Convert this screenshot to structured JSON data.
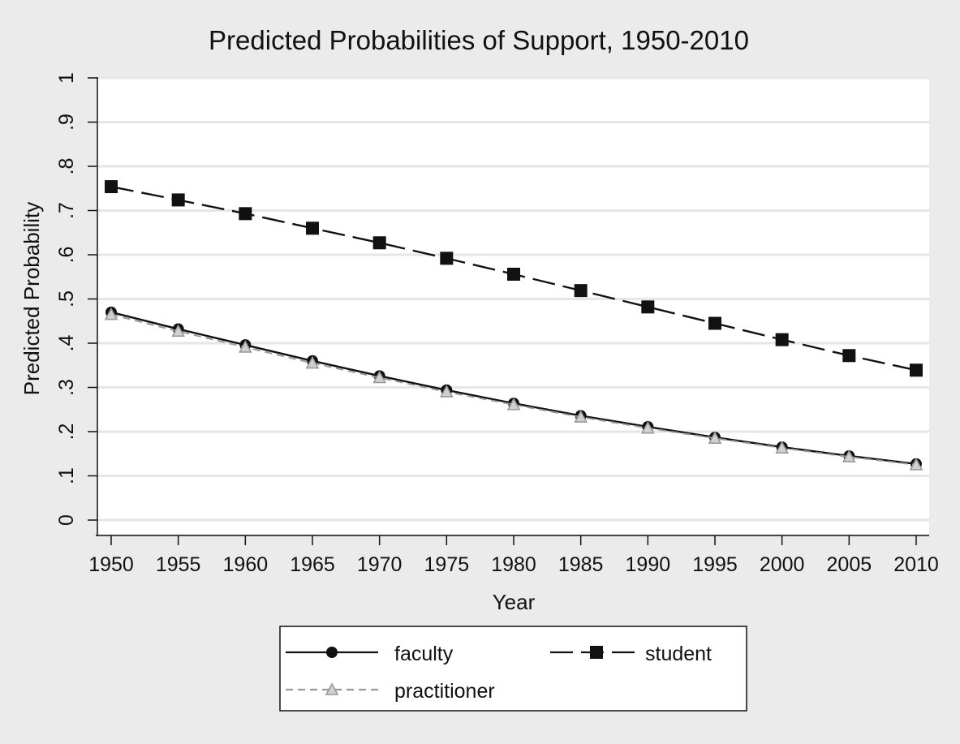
{
  "chart_data": {
    "type": "line",
    "title": "Predicted Probabilities of Support, 1950-2010",
    "xlabel": "Year",
    "ylabel": "Predicted Probability",
    "x": [
      1950,
      1955,
      1960,
      1965,
      1970,
      1975,
      1980,
      1985,
      1990,
      1995,
      2000,
      2005,
      2010
    ],
    "x_tick_labels": [
      "1950",
      "1955",
      "1960",
      "1965",
      "1970",
      "1975",
      "1980",
      "1985",
      "1990",
      "1995",
      "2000",
      "2005",
      "2010"
    ],
    "y_ticks": [
      0,
      0.1,
      0.2,
      0.3,
      0.4,
      0.5,
      0.6,
      0.7,
      0.8,
      0.9,
      1
    ],
    "y_tick_labels": [
      "0",
      ".1",
      ".2",
      ".3",
      ".4",
      ".5",
      ".6",
      ".7",
      ".8",
      ".9",
      "1"
    ],
    "xlim": [
      1950,
      2010
    ],
    "ylim": [
      0,
      1
    ],
    "grid": true,
    "legend_position": "bottom",
    "series": [
      {
        "name": "faculty",
        "marker": "circle",
        "line": "solid",
        "color": "#111111",
        "values": [
          0.47,
          0.432,
          0.396,
          0.36,
          0.326,
          0.294,
          0.264,
          0.236,
          0.211,
          0.187,
          0.165,
          0.145,
          0.127
        ]
      },
      {
        "name": "student",
        "marker": "square",
        "line": "dash",
        "color": "#111111",
        "values": [
          0.754,
          0.724,
          0.693,
          0.66,
          0.627,
          0.592,
          0.556,
          0.519,
          0.482,
          0.445,
          0.408,
          0.372,
          0.339
        ]
      },
      {
        "name": "practitioner",
        "marker": "triangle",
        "line": "short-dash",
        "color": "#999999",
        "values": [
          0.465,
          0.427,
          0.391,
          0.355,
          0.322,
          0.29,
          0.261,
          0.233,
          0.208,
          0.185,
          0.163,
          0.143,
          0.125
        ]
      }
    ]
  },
  "colors": {
    "background": "#ebebeb",
    "plot_area": "#ffffff",
    "grid": "#e6e6e6",
    "axis": "#111111"
  }
}
